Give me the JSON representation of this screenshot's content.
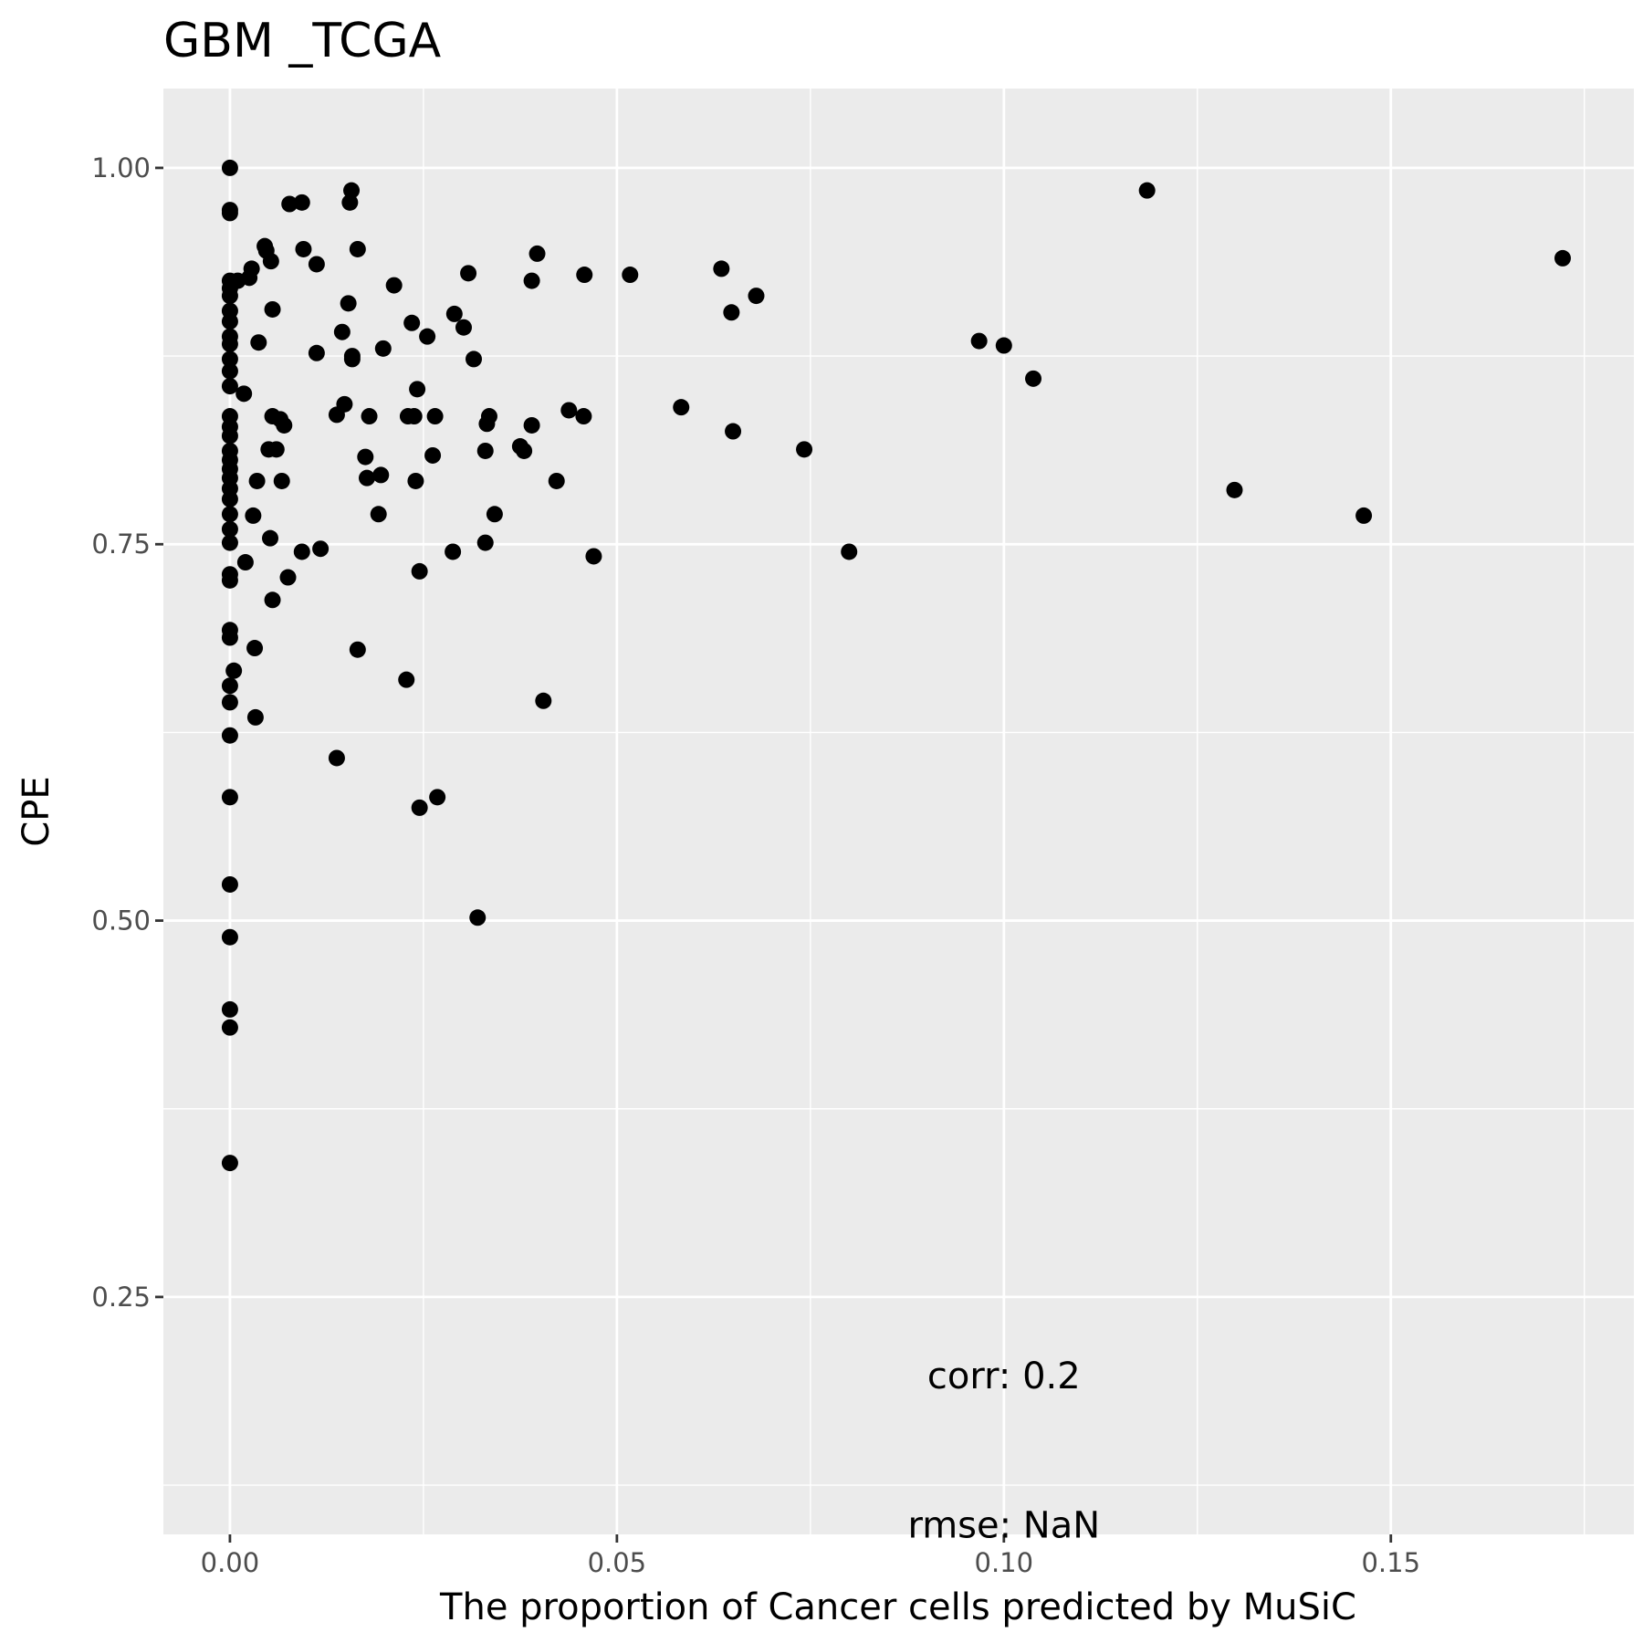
{
  "chart_data": {
    "type": "scatter",
    "title": "GBM _TCGA",
    "xlabel": "The proportion of Cancer cells predicted by MuSiC",
    "ylabel": "CPE",
    "xlim": [
      -0.0086,
      0.1814
    ],
    "ylim": [
      0.0923,
      1.0527
    ],
    "x_ticks": [
      0.0,
      0.05,
      0.1,
      0.15
    ],
    "x_tick_labels": [
      "0.00",
      "0.05",
      "0.10",
      "0.15"
    ],
    "y_ticks": [
      0.25,
      0.5,
      0.75,
      1.0
    ],
    "y_tick_labels": [
      "0.25",
      "0.50",
      "0.75",
      "1.00"
    ],
    "grid": true,
    "background": "#ebebeb",
    "point_color": "#000000",
    "annotations": [
      {
        "text": "corr: 0.2",
        "x": 0.1,
        "y": 0.1977
      },
      {
        "text": "rmse: NaN",
        "x": 0.1,
        "y": 0.0987
      }
    ],
    "points": [
      [
        0.0,
        1.0
      ],
      [
        0.0,
        0.972
      ],
      [
        0.0,
        0.97
      ],
      [
        0.0,
        0.925
      ],
      [
        0.0,
        0.92
      ],
      [
        0.0,
        0.915
      ],
      [
        0.0,
        0.905
      ],
      [
        0.0,
        0.898
      ],
      [
        0.0,
        0.888
      ],
      [
        0.0,
        0.883
      ],
      [
        0.0,
        0.873
      ],
      [
        0.0,
        0.865
      ],
      [
        0.0,
        0.855
      ],
      [
        0.0,
        0.835
      ],
      [
        0.0,
        0.828
      ],
      [
        0.0,
        0.822
      ],
      [
        0.0,
        0.812
      ],
      [
        0.0,
        0.806
      ],
      [
        0.0,
        0.8
      ],
      [
        0.0,
        0.794
      ],
      [
        0.0,
        0.787
      ],
      [
        0.0,
        0.78
      ],
      [
        0.0,
        0.77
      ],
      [
        0.0,
        0.76
      ],
      [
        0.0,
        0.751
      ],
      [
        0.0,
        0.73
      ],
      [
        0.0,
        0.726
      ],
      [
        0.0,
        0.693
      ],
      [
        0.0,
        0.688
      ],
      [
        0.0,
        0.656
      ],
      [
        0.0,
        0.645
      ],
      [
        0.0,
        0.623
      ],
      [
        0.0,
        0.582
      ],
      [
        0.0,
        0.524
      ],
      [
        0.0,
        0.489
      ],
      [
        0.0,
        0.441
      ],
      [
        0.0,
        0.429
      ],
      [
        0.0,
        0.339
      ],
      [
        0.0005,
        0.666
      ],
      [
        0.001,
        0.925
      ],
      [
        0.0018,
        0.85
      ],
      [
        0.002,
        0.738
      ],
      [
        0.0025,
        0.927
      ],
      [
        0.0028,
        0.933
      ],
      [
        0.003,
        0.769
      ],
      [
        0.0032,
        0.681
      ],
      [
        0.0033,
        0.635
      ],
      [
        0.0035,
        0.792
      ],
      [
        0.0037,
        0.884
      ],
      [
        0.0045,
        0.948
      ],
      [
        0.0047,
        0.945
      ],
      [
        0.005,
        0.813
      ],
      [
        0.0052,
        0.754
      ],
      [
        0.0053,
        0.938
      ],
      [
        0.0055,
        0.835
      ],
      [
        0.0055,
        0.713
      ],
      [
        0.0055,
        0.906
      ],
      [
        0.006,
        0.813
      ],
      [
        0.0065,
        0.833
      ],
      [
        0.0067,
        0.792
      ],
      [
        0.007,
        0.829
      ],
      [
        0.0075,
        0.728
      ],
      [
        0.0077,
        0.976
      ],
      [
        0.0093,
        0.977
      ],
      [
        0.0093,
        0.745
      ],
      [
        0.0095,
        0.946
      ],
      [
        0.0112,
        0.936
      ],
      [
        0.0112,
        0.877
      ],
      [
        0.0117,
        0.747
      ],
      [
        0.0138,
        0.608
      ],
      [
        0.0138,
        0.836
      ],
      [
        0.0145,
        0.891
      ],
      [
        0.0148,
        0.843
      ],
      [
        0.0153,
        0.91
      ],
      [
        0.0155,
        0.977
      ],
      [
        0.0157,
        0.985
      ],
      [
        0.0158,
        0.875
      ],
      [
        0.0158,
        0.873
      ],
      [
        0.0165,
        0.946
      ],
      [
        0.0165,
        0.68
      ],
      [
        0.0175,
        0.808
      ],
      [
        0.0177,
        0.794
      ],
      [
        0.018,
        0.835
      ],
      [
        0.0192,
        0.77
      ],
      [
        0.0195,
        0.796
      ],
      [
        0.0198,
        0.88
      ],
      [
        0.0212,
        0.922
      ],
      [
        0.0228,
        0.66
      ],
      [
        0.023,
        0.835
      ],
      [
        0.0235,
        0.897
      ],
      [
        0.0238,
        0.835
      ],
      [
        0.024,
        0.792
      ],
      [
        0.0242,
        0.853
      ],
      [
        0.0245,
        0.732
      ],
      [
        0.0245,
        0.575
      ],
      [
        0.0255,
        0.888
      ],
      [
        0.0262,
        0.809
      ],
      [
        0.0265,
        0.835
      ],
      [
        0.0268,
        0.582
      ],
      [
        0.0288,
        0.745
      ],
      [
        0.029,
        0.903
      ],
      [
        0.0302,
        0.894
      ],
      [
        0.0308,
        0.93
      ],
      [
        0.0315,
        0.873
      ],
      [
        0.032,
        0.502
      ],
      [
        0.033,
        0.751
      ],
      [
        0.033,
        0.812
      ],
      [
        0.0332,
        0.83
      ],
      [
        0.0335,
        0.835
      ],
      [
        0.0342,
        0.77
      ],
      [
        0.0375,
        0.815
      ],
      [
        0.038,
        0.812
      ],
      [
        0.039,
        0.829
      ],
      [
        0.039,
        0.925
      ],
      [
        0.0397,
        0.943
      ],
      [
        0.0405,
        0.646
      ],
      [
        0.0422,
        0.792
      ],
      [
        0.0438,
        0.839
      ],
      [
        0.0457,
        0.835
      ],
      [
        0.0458,
        0.929
      ],
      [
        0.047,
        0.742
      ],
      [
        0.0517,
        0.929
      ],
      [
        0.0583,
        0.841
      ],
      [
        0.0635,
        0.933
      ],
      [
        0.0648,
        0.904
      ],
      [
        0.065,
        0.825
      ],
      [
        0.068,
        0.915
      ],
      [
        0.0742,
        0.813
      ],
      [
        0.08,
        0.745
      ],
      [
        0.0968,
        0.885
      ],
      [
        0.1,
        0.882
      ],
      [
        0.1038,
        0.86
      ],
      [
        0.1185,
        0.985
      ],
      [
        0.1298,
        0.786
      ],
      [
        0.1465,
        0.769
      ],
      [
        0.1722,
        0.94
      ]
    ]
  }
}
